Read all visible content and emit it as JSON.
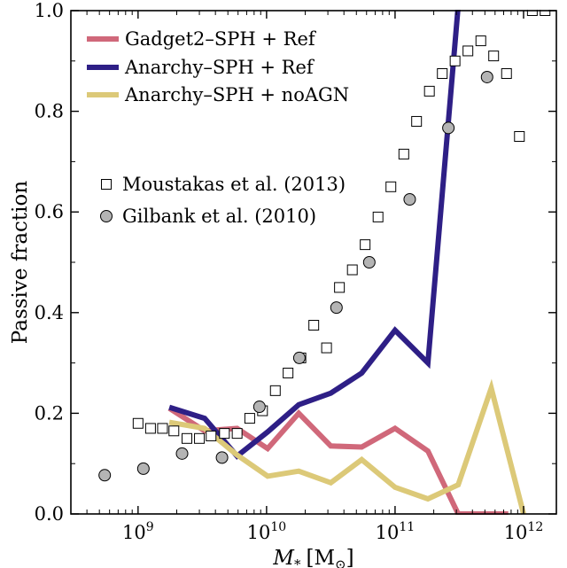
{
  "chart_data": {
    "type": "line",
    "title": "",
    "xlabel": "M_* [M_⊙]",
    "xlabel_parts": {
      "symbol": "M",
      "subscript": "*",
      "unit_open": "[M",
      "unit_sub": "⊙",
      "unit_close": "]"
    },
    "ylabel": "Passive fraction",
    "xscale": "log",
    "xlim": [
      300000000,
      1800000000000
    ],
    "ylim": [
      0.0,
      1.0
    ],
    "xticks": [
      {
        "value": 1000000000,
        "base": "10",
        "exp": "9"
      },
      {
        "value": 10000000000,
        "base": "10",
        "exp": "10"
      },
      {
        "value": 100000000000,
        "base": "10",
        "exp": "11"
      },
      {
        "value": 1000000000000,
        "base": "10",
        "exp": "12"
      }
    ],
    "yticks": [
      {
        "value": 0.0,
        "label": "0.0"
      },
      {
        "value": 0.2,
        "label": "0.2"
      },
      {
        "value": 0.4,
        "label": "0.4"
      },
      {
        "value": 0.6,
        "label": "0.6"
      },
      {
        "value": 0.8,
        "label": "0.8"
      },
      {
        "value": 1.0,
        "label": "1.0"
      }
    ],
    "grid": false,
    "legend_lines": "top-left",
    "legend_markers": "upper-left",
    "series": [
      {
        "name": "Gadget2–SPH + Ref",
        "color": "#d0687a",
        "x": [
          1750000000.0,
          3300000000.0,
          5900000000.0,
          10200000000.0,
          17800000000.0,
          31600000000.0,
          55000000000.0,
          100000000000.0,
          180000000000.0,
          310000000000.0,
          550000000000.0,
          760000000000.0
        ],
        "y": [
          0.21,
          0.165,
          0.17,
          0.13,
          0.2,
          0.135,
          0.133,
          0.17,
          0.125,
          0.0,
          0.0,
          0.0
        ]
      },
      {
        "name": "Anarchy–SPH + Ref",
        "color": "#2e1f86",
        "x": [
          1750000000.0,
          3300000000.0,
          5900000000.0,
          10200000000.0,
          17800000000.0,
          31600000000.0,
          55000000000.0,
          100000000000.0,
          180000000000.0,
          310000000000.0
        ],
        "y": [
          0.212,
          0.19,
          0.115,
          0.163,
          0.217,
          0.24,
          0.28,
          0.365,
          0.3,
          1.01
        ]
      },
      {
        "name": "Anarchy–SPH + noAGN",
        "color": "#dcc978",
        "x": [
          1750000000.0,
          3300000000.0,
          5900000000.0,
          10200000000.0,
          17800000000.0,
          31600000000.0,
          55000000000.0,
          100000000000.0,
          180000000000.0,
          310000000000.0,
          560000000000.0,
          1000000000000.0
        ],
        "y": [
          0.182,
          0.17,
          0.117,
          0.075,
          0.085,
          0.062,
          0.108,
          0.053,
          0.03,
          0.058,
          0.25,
          0.0
        ]
      }
    ],
    "observations": [
      {
        "name": "Moustakas et al. (2013)",
        "marker": "open-square",
        "x": [
          1000000000.0,
          1250000000.0,
          1550000000.0,
          1900000000.0,
          2400000000.0,
          3000000000.0,
          3700000000.0,
          4700000000.0,
          5900000000.0,
          7400000000.0,
          9300000000.0,
          11700000000.0,
          14700000000.0,
          18500000000.0,
          23300000000.0,
          29300000000.0,
          36900000000.0,
          46500000000.0,
          58500000000.0,
          73700000000.0,
          92800000000.0,
          117000000000.0,
          147000000000.0,
          185000000000.0,
          233000000000.0,
          293000000000.0,
          369000000000.0,
          465000000000.0,
          585000000000.0,
          737000000000.0,
          928000000000.0,
          1170000000000.0,
          1470000000000.0
        ],
        "y": [
          0.18,
          0.17,
          0.17,
          0.165,
          0.15,
          0.15,
          0.155,
          0.16,
          0.16,
          0.19,
          0.205,
          0.245,
          0.28,
          0.31,
          0.375,
          0.33,
          0.45,
          0.485,
          0.535,
          0.59,
          0.65,
          0.715,
          0.78,
          0.84,
          0.875,
          0.9,
          0.92,
          0.94,
          0.91,
          0.875,
          0.75,
          1.0,
          1.0
        ]
      },
      {
        "name": "Gilbank et al. (2010)",
        "marker": "filled-circle",
        "marker_color": "#b4b4b4",
        "x": [
          550000000.0,
          1100000000.0,
          2200000000.0,
          4500000000.0,
          8800000000.0,
          18000000000.0,
          35000000000.0,
          63000000000.0,
          130000000000.0,
          260000000000.0,
          520000000000.0
        ],
        "y": [
          0.077,
          0.09,
          0.12,
          0.112,
          0.213,
          0.31,
          0.41,
          0.5,
          0.625,
          0.767,
          0.868
        ]
      }
    ]
  }
}
